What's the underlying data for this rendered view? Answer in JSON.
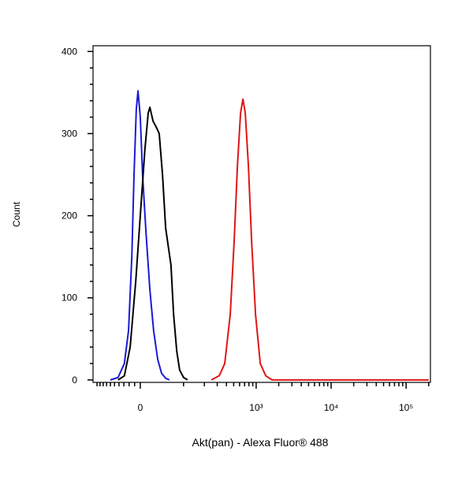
{
  "chart_data": {
    "type": "line",
    "x_label": "Akt(pan) - Alexa Fluor® 488",
    "y_label": "Count",
    "x_scale": "biexponential",
    "xlim": [
      -115,
      211000
    ],
    "ylim": [
      -3,
      407
    ],
    "xticks": [
      0,
      {
        "value": 1000,
        "label": "10³"
      },
      {
        "value": 10000,
        "label": "10⁴"
      },
      {
        "value": 100000,
        "label": "10⁵"
      }
    ],
    "xminorticks": [
      -100,
      -90,
      -80,
      -70,
      -60,
      -50,
      -40,
      -30,
      -20,
      -10,
      100,
      200,
      300,
      400,
      500,
      600,
      700,
      800,
      900,
      2000,
      3000,
      4000,
      5000,
      6000,
      7000,
      8000,
      9000,
      20000,
      30000,
      40000,
      50000,
      60000,
      70000,
      80000,
      90000,
      200000
    ],
    "yticks": [
      0,
      100,
      200,
      300,
      400
    ],
    "yminorticks": [
      20,
      40,
      60,
      80,
      120,
      140,
      160,
      180,
      220,
      240,
      260,
      280,
      320,
      340,
      360,
      380
    ],
    "grid": false,
    "series": [
      {
        "color": "#1a1ad6",
        "x": [
          -60,
          -42,
          -29,
          -21,
          -15,
          -11,
          -7,
          -4,
          0,
          4,
          10,
          17,
          24,
          32,
          40,
          49,
          58
        ],
        "values": [
          0,
          3,
          20,
          60,
          150,
          250,
          330,
          352,
          320,
          250,
          180,
          110,
          60,
          25,
          8,
          2,
          0
        ]
      },
      {
        "color": "#000000",
        "x": [
          -42,
          -29,
          -18,
          -8,
          0,
          8,
          14,
          17,
          23,
          29,
          35,
          42,
          49,
          56,
          62,
          69,
          78,
          87,
          100,
          115
        ],
        "values": [
          0,
          5,
          40,
          120,
          200,
          280,
          325,
          332,
          315,
          308,
          300,
          250,
          185,
          160,
          140,
          80,
          35,
          12,
          3,
          0
        ]
      },
      {
        "color": "#e01515",
        "x": [
          249,
          319,
          379,
          450,
          508,
          561,
          618,
          665,
          715,
          788,
          868,
          980,
          1134,
          1344,
          1632,
          200000
        ],
        "values": [
          0,
          5,
          20,
          80,
          170,
          260,
          325,
          342,
          325,
          260,
          170,
          80,
          20,
          5,
          0,
          0
        ]
      }
    ]
  }
}
